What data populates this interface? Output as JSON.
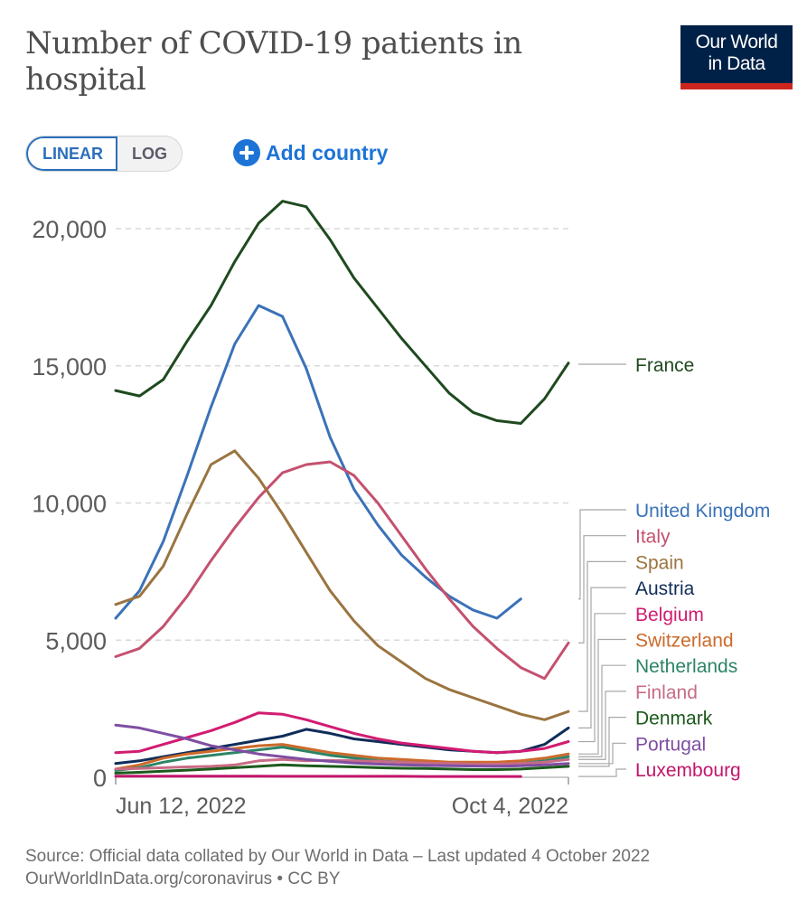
{
  "header": {
    "title": "Number of COVID-19 patients in hospital",
    "logo_line1": "Our World",
    "logo_line2": "in Data"
  },
  "controls": {
    "linear_label": "LINEAR",
    "log_label": "LOG",
    "active_scale": "LINEAR",
    "add_country_label": "Add country",
    "add_icon": "plus-circle-icon"
  },
  "footer": {
    "source": "Source: Official data collated by Our World in Data – Last updated 4 October 2022",
    "url_license": "OurWorldInData.org/coronavirus • CC BY"
  },
  "chart_data": {
    "type": "line",
    "title": "Number of COVID-19 patients in hospital",
    "xlabel": "",
    "ylabel": "",
    "x_start_label": "Jun 12, 2022",
    "x_end_label": "Oct 4, 2022",
    "x_unit": "days since Jun 12, 2022",
    "x_range": [
      0,
      114
    ],
    "ylim": [
      0,
      20000
    ],
    "yticks": [
      0,
      5000,
      10000,
      15000,
      20000
    ],
    "ytick_labels": [
      "0",
      "5,000",
      "10,000",
      "15,000",
      "20,000"
    ],
    "grid": true,
    "legend": "right (inline labels)",
    "x": [
      0,
      6,
      12,
      18,
      24,
      30,
      36,
      42,
      48,
      54,
      60,
      66,
      72,
      78,
      84,
      90,
      96,
      102,
      108,
      114
    ],
    "series": [
      {
        "name": "France",
        "color": "#1f4a1f",
        "values": [
          14100,
          13900,
          14500,
          15900,
          17200,
          18800,
          20200,
          21000,
          20800,
          19600,
          18200,
          17100,
          16000,
          15000,
          14000,
          13300,
          13000,
          12900,
          13800,
          15100
        ]
      },
      {
        "name": "United Kingdom",
        "color": "#3a72b8",
        "values": [
          5800,
          6800,
          8600,
          11000,
          13500,
          15800,
          17200,
          16800,
          14900,
          12400,
          10500,
          9200,
          8100,
          7300,
          6600,
          6100,
          5800,
          6500,
          null,
          null
        ]
      },
      {
        "name": "Italy",
        "color": "#c4516f",
        "values": [
          4400,
          4700,
          5500,
          6600,
          7900,
          9100,
          10200,
          11100,
          11400,
          11500,
          11000,
          10000,
          8800,
          7600,
          6500,
          5500,
          4700,
          4000,
          3600,
          4900
        ]
      },
      {
        "name": "Spain",
        "color": "#9a7440",
        "values": [
          6300,
          6600,
          7700,
          9600,
          11400,
          11900,
          10900,
          9600,
          8200,
          6800,
          5700,
          4800,
          4200,
          3600,
          3200,
          2900,
          2600,
          2300,
          2100,
          2400
        ]
      },
      {
        "name": "Austria",
        "color": "#102d5a",
        "values": [
          500,
          600,
          750,
          900,
          1050,
          1200,
          1350,
          1500,
          1750,
          1600,
          1400,
          1300,
          1200,
          1100,
          1000,
          950,
          900,
          950,
          1200,
          1800
        ]
      },
      {
        "name": "Belgium",
        "color": "#d21c72",
        "values": [
          900,
          950,
          1200,
          1450,
          1700,
          2000,
          2350,
          2300,
          2100,
          1850,
          1600,
          1400,
          1250,
          1150,
          1050,
          950,
          900,
          950,
          1050,
          1300
        ]
      },
      {
        "name": "Switzerland",
        "color": "#cc6a2a",
        "values": [
          300,
          450,
          700,
          850,
          950,
          1050,
          1150,
          1200,
          1050,
          900,
          800,
          700,
          650,
          600,
          550,
          550,
          550,
          600,
          700,
          850
        ]
      },
      {
        "name": "Netherlands",
        "color": "#2c8465",
        "values": [
          250,
          350,
          550,
          700,
          800,
          900,
          1000,
          1100,
          950,
          800,
          700,
          600,
          550,
          500,
          450,
          450,
          450,
          500,
          600,
          750
        ]
      },
      {
        "name": "Finland",
        "color": "#c86c85",
        "values": [
          300,
          320,
          350,
          380,
          400,
          450,
          600,
          650,
          600,
          620,
          600,
          580,
          550,
          520,
          500,
          480,
          480,
          500,
          550,
          650
        ]
      },
      {
        "name": "Denmark",
        "color": "#1c5a1c",
        "values": [
          150,
          180,
          220,
          260,
          300,
          350,
          400,
          450,
          420,
          400,
          380,
          350,
          330,
          320,
          300,
          280,
          280,
          300,
          350,
          400
        ]
      },
      {
        "name": "Portugal",
        "color": "#7f4ea3",
        "values": [
          1900,
          1800,
          1600,
          1400,
          1150,
          1000,
          850,
          750,
          650,
          580,
          520,
          480,
          450,
          430,
          420,
          410,
          400,
          420,
          450,
          500
        ]
      },
      {
        "name": "Luxembourg",
        "color": "#c3156b",
        "values": [
          40,
          40,
          40,
          40,
          40,
          40,
          40,
          35,
          35,
          35,
          35,
          35,
          35,
          30,
          30,
          30,
          30,
          30,
          null,
          null
        ]
      }
    ]
  }
}
